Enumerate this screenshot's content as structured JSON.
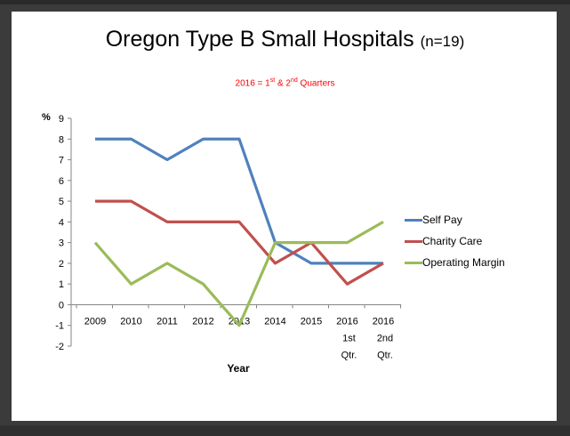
{
  "chart": {
    "title_main": "Oregon Type B Small Hospitals",
    "title_n": "(n=19)",
    "subtitle_pre1": "2016 = 1",
    "subtitle_sup1": "st",
    "subtitle_mid": " & 2",
    "subtitle_sup2": "nd",
    "subtitle_post": " Quarters",
    "y_unit": "%"
  },
  "chart_data": {
    "type": "line",
    "title": "Oregon Type B Small Hospitals (n=19)",
    "subtitle": "2016 = 1st & 2nd Quarters",
    "xlabel": "Year",
    "ylabel": "%",
    "ylim": [
      -2,
      9
    ],
    "yticks": [
      -2,
      -1,
      0,
      1,
      2,
      3,
      4,
      5,
      6,
      7,
      8,
      9
    ],
    "categories": [
      [
        "2009"
      ],
      [
        "2010"
      ],
      [
        "2011"
      ],
      [
        "2012"
      ],
      [
        "2013"
      ],
      [
        "2014"
      ],
      [
        "2015"
      ],
      [
        "2016",
        "1st",
        "Qtr."
      ],
      [
        "2016",
        "2nd",
        "Qtr."
      ]
    ],
    "legend_position": "right",
    "grid": false,
    "series": [
      {
        "name": "Self Pay",
        "color": "#4f81bd",
        "values": [
          8,
          8,
          7,
          8,
          8,
          3,
          2,
          2,
          2
        ]
      },
      {
        "name": "Charity Care",
        "color": "#c0504d",
        "values": [
          5,
          5,
          4,
          4,
          4,
          2,
          3,
          1,
          2
        ]
      },
      {
        "name": "Operating Margin",
        "color": "#9bbb59",
        "values": [
          3,
          1,
          2,
          1,
          -1,
          3,
          3,
          3,
          4
        ]
      }
    ]
  }
}
